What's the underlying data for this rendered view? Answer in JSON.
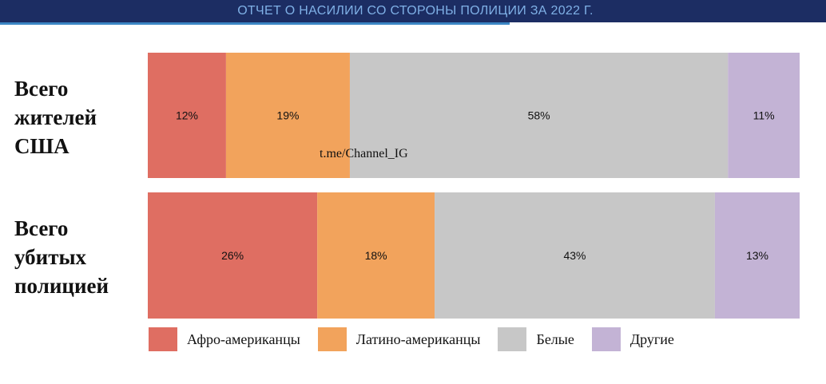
{
  "header": {
    "title": "ОТЧЕТ О НАСИЛИИ СО СТОРОНЫ ПОЛИЦИИ ЗА 2022 Г."
  },
  "watermark": "t.me/Channel_IG",
  "colors": {
    "banner_bg": "#1c2d63",
    "banner_text": "#7fb0e6",
    "accent_line": "#3b86c4"
  },
  "chart_data": {
    "type": "bar",
    "orientation": "horizontal",
    "stacked": true,
    "normalized_100": true,
    "title": "ОТЧЕТ О НАСИЛИИ СО СТОРОНЫ ПОЛИЦИИ ЗА 2022 Г.",
    "categories": [
      "Всего жителей США",
      "Всего убитых полицией"
    ],
    "category_lines": [
      [
        "Всего",
        "жителей",
        "США"
      ],
      [
        "Всего",
        "убитых",
        "полицией"
      ]
    ],
    "series": [
      {
        "name": "Афро-американцы",
        "color": "#df6e62",
        "values": [
          12,
          26
        ],
        "labels": [
          "12%",
          "26%"
        ]
      },
      {
        "name": "Латино-американцы",
        "color": "#f2a35c",
        "values": [
          19,
          18
        ],
        "labels": [
          "19%",
          "18%"
        ]
      },
      {
        "name": "Белые",
        "color": "#c7c7c7",
        "values": [
          58,
          43
        ],
        "labels": [
          "58%",
          "43%"
        ]
      },
      {
        "name": "Другие",
        "color": "#c3b3d5",
        "values": [
          11,
          13
        ],
        "labels": [
          "11%",
          "13%"
        ]
      }
    ],
    "xlim": [
      0,
      100
    ],
    "grid": false,
    "legend": "bottom"
  }
}
